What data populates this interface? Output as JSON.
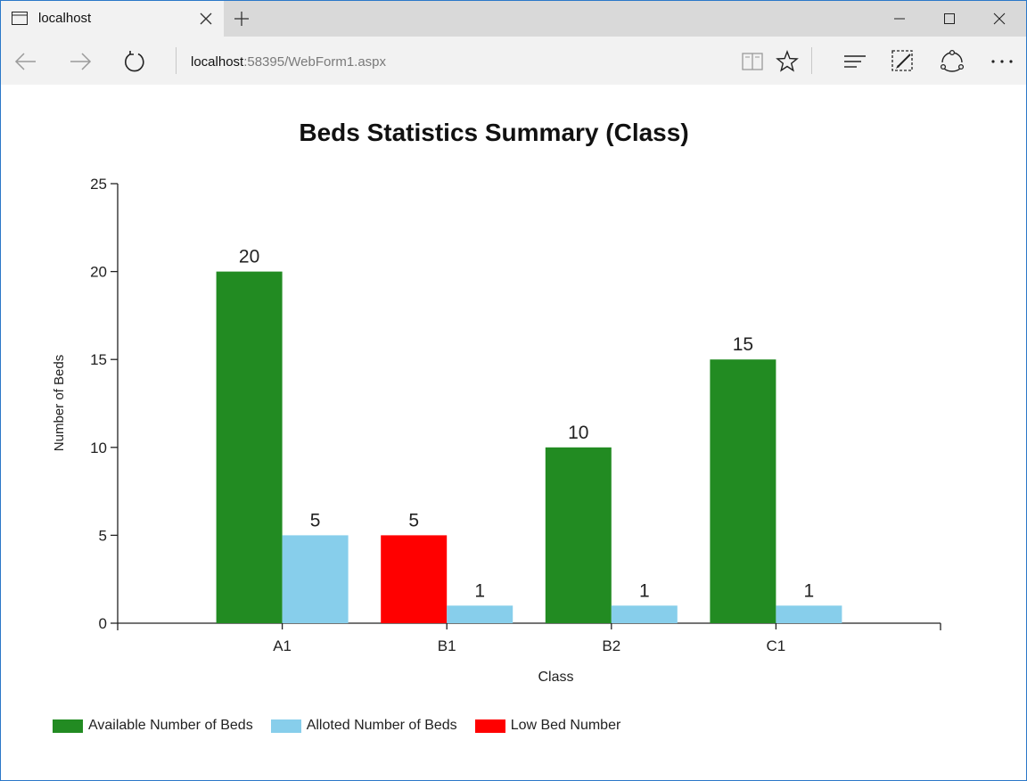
{
  "browser": {
    "tab_title": "localhost",
    "address_host": "localhost",
    "address_rest": ":58395/WebForm1.aspx"
  },
  "icons": {
    "tab": "page-icon",
    "close": "close-icon",
    "new_tab": "plus-icon",
    "back": "back-arrow-icon",
    "forward": "forward-arrow-icon",
    "refresh": "refresh-icon",
    "reading_view": "book-icon",
    "favorite": "star-icon",
    "hub": "hub-icon",
    "notes": "pen-icon",
    "share": "share-icon",
    "more": "more-icon"
  },
  "colors": {
    "available": "#228B22",
    "alloted": "#87CEEB",
    "low": "#FF0000"
  },
  "chart_data": {
    "type": "bar",
    "title": "Beds Statistics Summary (Class)",
    "xlabel": "Class",
    "ylabel": "Number of Beds",
    "categories": [
      "A1",
      "B1",
      "B2",
      "C1"
    ],
    "ylim": [
      0,
      25
    ],
    "yticks": [
      0,
      5,
      10,
      15,
      20,
      25
    ],
    "series": [
      {
        "name": "Available Number of Beds",
        "values": [
          20,
          5,
          10,
          15
        ]
      },
      {
        "name": "Alloted Number of Beds",
        "values": [
          5,
          1,
          1,
          1
        ]
      }
    ],
    "low_bed_category": "B1",
    "legend": [
      {
        "label": "Available Number of Beds",
        "color": "#228B22"
      },
      {
        "label": "Alloted Number of Beds",
        "color": "#87CEEB"
      },
      {
        "label": "Low Bed Number",
        "color": "#FF0000"
      }
    ],
    "legend_position": "bottom-left",
    "grid": false
  }
}
